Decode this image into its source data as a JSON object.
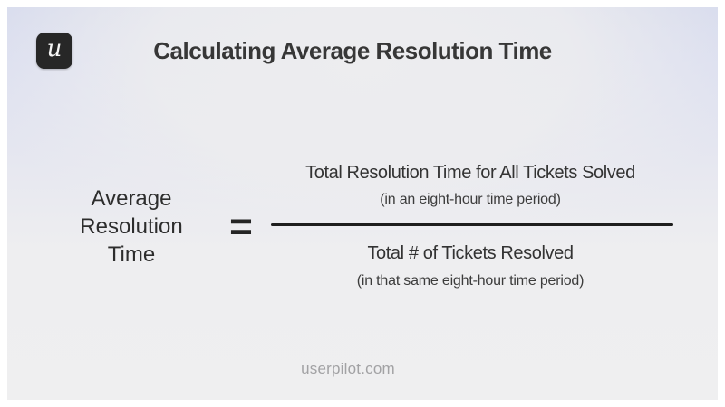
{
  "brand": {
    "logo_letter": "u"
  },
  "header": {
    "title": "Calculating Average Resolution Time"
  },
  "formula": {
    "lhs_lines": [
      "Average",
      "Resolution",
      "Time"
    ],
    "equals_sign": "=",
    "numerator": {
      "main": "Total Resolution Time for All Tickets Solved",
      "note": "(in an eight-hour time period)"
    },
    "denominator": {
      "main": "Total # of Tickets Resolved",
      "note": "(in that same eight-hour time period)"
    }
  },
  "footer": {
    "website": "userpilot.com"
  },
  "colors": {
    "background_top": "#d8dcee",
    "background_bottom": "#efeff0",
    "logo_background": "#272727",
    "text_primary": "#333333",
    "fraction_bar": "#1e1e1e",
    "footer_text": "#a2a2a4"
  }
}
